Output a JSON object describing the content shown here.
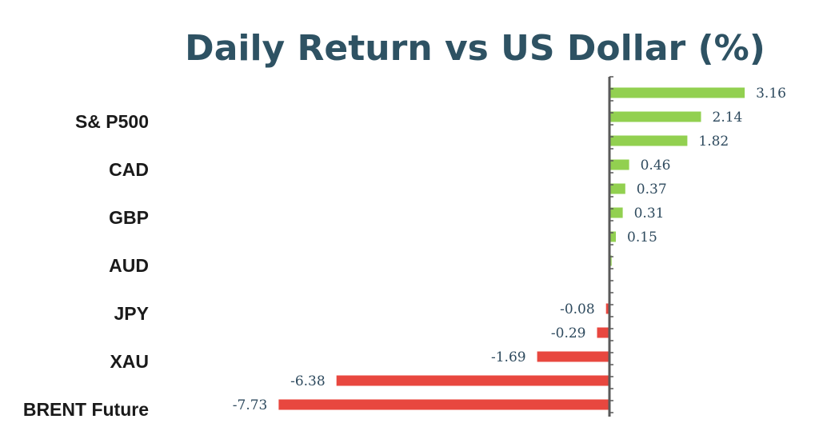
{
  "chart_data": {
    "type": "bar",
    "orientation": "horizontal",
    "title": "Daily Return vs US Dollar (%)",
    "xlabel": "",
    "ylabel": "",
    "category_labels": [
      "S& P500",
      "CAD",
      "GBP",
      "AUD",
      "JPY",
      "XAU",
      "BRENT Future"
    ],
    "bars": [
      {
        "value": 3.16,
        "label": "3.16"
      },
      {
        "value": 2.14,
        "label": "2.14"
      },
      {
        "value": 1.82,
        "label": "1.82"
      },
      {
        "value": 0.46,
        "label": "0.46"
      },
      {
        "value": 0.37,
        "label": "0.37"
      },
      {
        "value": 0.31,
        "label": "0.31"
      },
      {
        "value": 0.15,
        "label": "0.15"
      },
      {
        "value": 0.05,
        "label": ""
      },
      {
        "value": 0,
        "label": ""
      },
      {
        "value": -0.08,
        "label": "-0.08"
      },
      {
        "value": -0.29,
        "label": "-0.29"
      },
      {
        "value": -1.69,
        "label": "-1.69"
      },
      {
        "value": -6.38,
        "label": "-6.38"
      },
      {
        "value": -7.73,
        "label": "-7.73"
      }
    ],
    "colors": {
      "positive": "#92d050",
      "negative": "#e8473f",
      "axis": "#595959"
    },
    "grid": false,
    "legend": "none"
  }
}
